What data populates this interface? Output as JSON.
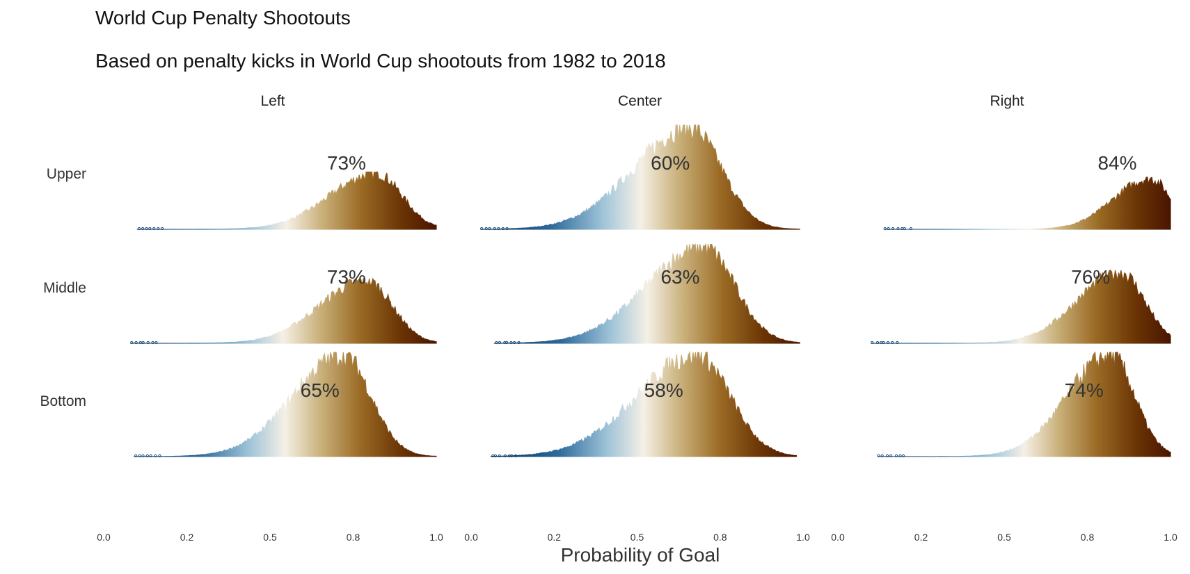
{
  "title": "World Cup Penalty Shootouts",
  "subtitle": "Based on penalty kicks in World Cup shootouts from 1982 to 2018",
  "chart_data": {
    "type": "area",
    "description_type": "faceted histogram grid (ridgeline-style), fill colored by x value",
    "columns": [
      "Left",
      "Center",
      "Right"
    ],
    "rows": [
      "Upper",
      "Middle",
      "Bottom"
    ],
    "xlabel": "Probability of Goal",
    "x_tick_labels": [
      "0.0",
      "0.2",
      "0.5",
      "0.8",
      "1.0"
    ],
    "xlim": [
      0,
      1
    ],
    "color_scale": {
      "low": "#053061",
      "mid": "#f5f0e6",
      "high": "#4a1500",
      "midpoint": 0.5
    },
    "panels": [
      {
        "column": "Left",
        "row": "Upper",
        "label": "73%",
        "mean": 0.73,
        "mode": 0.82,
        "spread": 0.14,
        "min": 0.1,
        "max": 1.0,
        "relative_height": 0.55
      },
      {
        "column": "Center",
        "row": "Upper",
        "label": "60%",
        "mean": 0.6,
        "mode": 0.66,
        "spread": 0.17,
        "min": 0.03,
        "max": 0.99,
        "relative_height": 1.0
      },
      {
        "column": "Right",
        "row": "Upper",
        "label": "84%",
        "mean": 0.84,
        "mode": 0.94,
        "spread": 0.11,
        "min": 0.14,
        "max": 1.0,
        "relative_height": 0.5
      },
      {
        "column": "Left",
        "row": "Middle",
        "label": "73%",
        "mean": 0.73,
        "mode": 0.79,
        "spread": 0.14,
        "min": 0.08,
        "max": 1.0,
        "relative_height": 0.62
      },
      {
        "column": "Center",
        "row": "Middle",
        "label": "63%",
        "mean": 0.63,
        "mode": 0.7,
        "spread": 0.17,
        "min": 0.07,
        "max": 0.99,
        "relative_height": 0.95
      },
      {
        "column": "Right",
        "row": "Middle",
        "label": "76%",
        "mean": 0.76,
        "mode": 0.85,
        "spread": 0.13,
        "min": 0.1,
        "max": 1.0,
        "relative_height": 0.7
      },
      {
        "column": "Left",
        "row": "Bottom",
        "label": "65%",
        "mean": 0.65,
        "mode": 0.72,
        "spread": 0.15,
        "min": 0.09,
        "max": 1.0,
        "relative_height": 1.0
      },
      {
        "column": "Center",
        "row": "Bottom",
        "label": "58%",
        "mean": 0.58,
        "mode": 0.68,
        "spread": 0.18,
        "min": 0.06,
        "max": 0.98,
        "relative_height": 1.0
      },
      {
        "column": "Right",
        "row": "Bottom",
        "label": "74%",
        "mean": 0.74,
        "mode": 0.82,
        "spread": 0.13,
        "min": 0.12,
        "max": 1.0,
        "relative_height": 1.0
      }
    ]
  }
}
